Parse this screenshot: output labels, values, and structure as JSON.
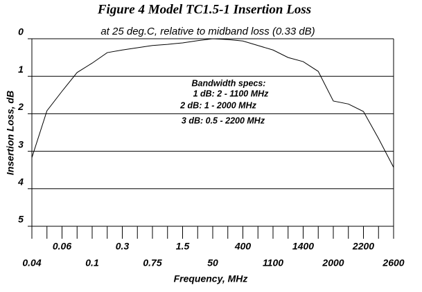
{
  "chart_data": {
    "type": "line",
    "title": "Figure 4   Model TC1.5-1  Insertion Loss",
    "subtitle": "at 25 deg.C, relative to midband loss (0.33 dB)",
    "y_label": "Insertion Loss, dB",
    "x_label": "Frequency, MHz",
    "annotations": [
      "Bandwidth specs:",
      "1 dB: 2 - 1100 MHz",
      "2 dB: 1 - 2000 MHz",
      "3 dB: 0.5 - 2200 MHz"
    ],
    "categories": [
      "0.04",
      null,
      "0.06",
      null,
      "0.1",
      null,
      "0.3",
      null,
      "0.75",
      null,
      "1.5",
      null,
      "50",
      null,
      "400",
      null,
      "1100",
      null,
      "1400",
      null,
      "2000",
      null,
      "2200",
      null,
      "2600"
    ],
    "values": [
      3.17,
      1.92,
      1.4,
      0.9,
      0.65,
      0.37,
      0.3,
      0.24,
      0.18,
      0.15,
      0.11,
      0.05,
      0,
      0.02,
      0.06,
      0.18,
      0.3,
      0.5,
      0.61,
      0.87,
      1.66,
      1.74,
      1.94,
      2.66,
      3.43
    ],
    "color": "#000000",
    "ylim": [
      0,
      5
    ],
    "yticks": [
      0,
      1,
      2,
      3,
      4,
      5
    ],
    "y_inverted": true,
    "grid": true
  }
}
